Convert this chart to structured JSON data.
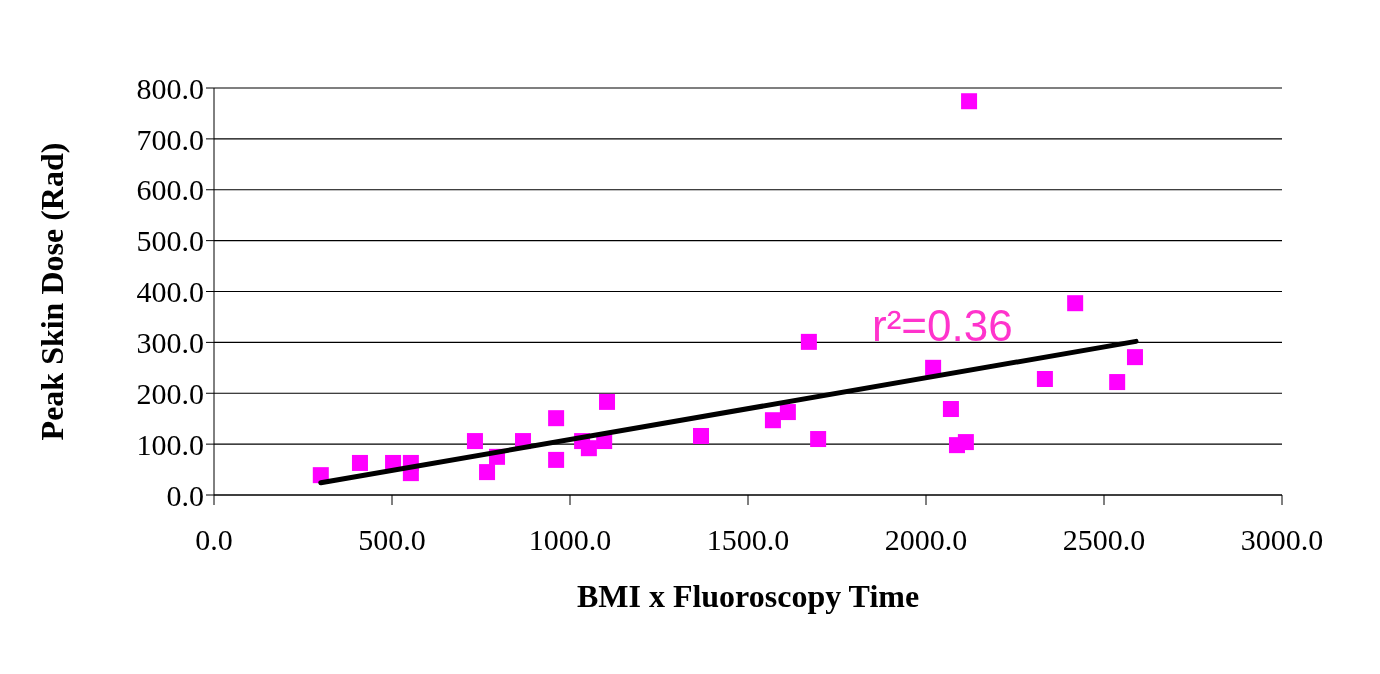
{
  "chart_data": {
    "type": "scatter",
    "xlabel": "BMI x Fluoroscopy Time",
    "ylabel": "Peak Skin Dose (Rad)",
    "xlim": [
      0,
      3000
    ],
    "xticks": [
      {
        "value": 0,
        "label": "0.0"
      },
      {
        "value": 500,
        "label": "500.0"
      },
      {
        "value": 1000,
        "label": "1000.0"
      },
      {
        "value": 1500,
        "label": "1500.0"
      },
      {
        "value": 2000,
        "label": "2000.0"
      },
      {
        "value": 2500,
        "label": "2500.0"
      },
      {
        "value": 3000,
        "label": "3000.0"
      }
    ],
    "ylim": [
      0,
      800
    ],
    "yticks": [
      {
        "value": 0,
        "label": "0.0"
      },
      {
        "value": 100,
        "label": "100.0"
      },
      {
        "value": 200,
        "label": "200.0"
      },
      {
        "value": 300,
        "label": "300.0"
      },
      {
        "value": 400,
        "label": "400.0"
      },
      {
        "value": 500,
        "label": "500.0"
      },
      {
        "value": 600,
        "label": "600.0"
      },
      {
        "value": 700,
        "label": "700.0"
      },
      {
        "value": 800,
        "label": "800.0"
      }
    ],
    "grid": "y",
    "marker": "square",
    "series": [
      {
        "color": "#ff00ff",
        "x": [
          300,
          410,
          503,
          553,
          553,
          733,
          767,
          795,
          868,
          961,
          961,
          1034,
          1053,
          1096,
          1104,
          1368,
          1570,
          1612,
          1671,
          1697,
          2020,
          2070,
          2087,
          2112,
          2121,
          2334,
          2419,
          2537,
          2587
        ],
        "values": [
          39,
          63,
          63,
          63,
          43,
          106,
          45,
          75,
          106,
          151,
          69,
          106,
          92,
          106,
          183,
          116,
          147,
          163,
          301,
          110,
          250,
          169,
          98,
          104,
          774,
          228,
          377,
          222,
          271
        ]
      },
      {
        "type": "line",
        "color": "#000000",
        "marker": "none",
        "line_style": "solid",
        "x": [
          300,
          2590
        ],
        "values": [
          24,
          302
        ]
      }
    ],
    "annotations": [
      "r²=0.36"
    ]
  }
}
